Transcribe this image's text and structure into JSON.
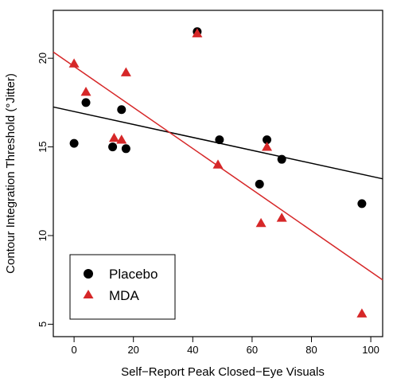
{
  "chart_data": {
    "type": "scatter",
    "xlabel": "Self−Report Peak Closed−Eye Visuals",
    "ylabel": "Contour Integration Threshold (°Jitter)",
    "xlim": [
      -7,
      104
    ],
    "ylim": [
      4.3,
      22.7
    ],
    "x_ticks": [
      0,
      20,
      40,
      60,
      80,
      100
    ],
    "y_ticks": [
      5,
      10,
      15,
      20
    ],
    "grid": false,
    "legend_position": "bottom-left",
    "series": [
      {
        "name": "Placebo",
        "marker": "circle",
        "color": "#000000",
        "points": [
          {
            "x": 0,
            "y": 15.2
          },
          {
            "x": 4,
            "y": 17.5
          },
          {
            "x": 13,
            "y": 15.0
          },
          {
            "x": 16,
            "y": 17.1
          },
          {
            "x": 17.5,
            "y": 14.9
          },
          {
            "x": 41.5,
            "y": 21.5
          },
          {
            "x": 49,
            "y": 15.4
          },
          {
            "x": 62.5,
            "y": 12.9
          },
          {
            "x": 65,
            "y": 15.4
          },
          {
            "x": 70,
            "y": 14.3
          },
          {
            "x": 97,
            "y": 11.8
          }
        ],
        "fit_line": [
          {
            "x": -7,
            "y": 17.25
          },
          {
            "x": 104,
            "y": 13.2
          }
        ]
      },
      {
        "name": "MDA",
        "marker": "triangle",
        "color": "#d62728",
        "points": [
          {
            "x": 0,
            "y": 19.7
          },
          {
            "x": 4,
            "y": 18.1
          },
          {
            "x": 13.5,
            "y": 15.5
          },
          {
            "x": 16,
            "y": 15.4
          },
          {
            "x": 17.5,
            "y": 19.2
          },
          {
            "x": 41.5,
            "y": 21.4
          },
          {
            "x": 48.5,
            "y": 14.0
          },
          {
            "x": 63,
            "y": 10.7
          },
          {
            "x": 65,
            "y": 15.0
          },
          {
            "x": 70,
            "y": 11.0
          },
          {
            "x": 97,
            "y": 5.6
          }
        ],
        "fit_line": [
          {
            "x": -7,
            "y": 20.35
          },
          {
            "x": 104,
            "y": 7.5
          }
        ]
      }
    ]
  }
}
